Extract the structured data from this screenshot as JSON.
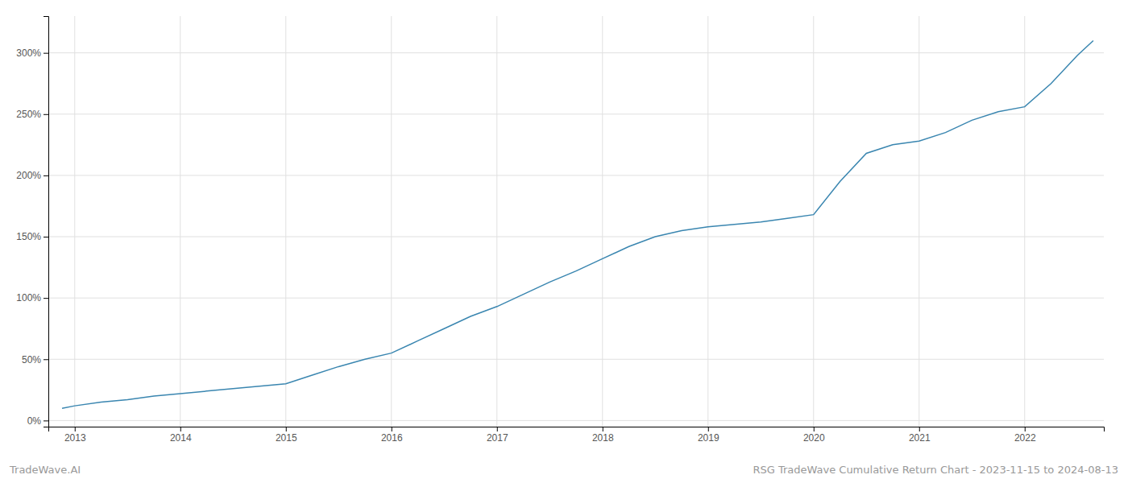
{
  "chart_data": {
    "type": "line",
    "title": "RSG TradeWave Cumulative Return Chart - 2023-11-15 to 2024-08-13",
    "annotations": [
      "TradeWave.AI"
    ],
    "x": [
      2012.88,
      2013.0,
      2013.25,
      2013.5,
      2013.75,
      2014.0,
      2014.25,
      2014.5,
      2014.75,
      2015.0,
      2015.25,
      2015.5,
      2015.75,
      2016.0,
      2016.25,
      2016.5,
      2016.75,
      2017.0,
      2017.25,
      2017.5,
      2017.75,
      2018.0,
      2018.25,
      2018.5,
      2018.75,
      2019.0,
      2019.25,
      2019.5,
      2019.75,
      2020.0,
      2020.25,
      2020.5,
      2020.75,
      2021.0,
      2021.25,
      2021.5,
      2021.75,
      2022.0,
      2022.25,
      2022.5,
      2022.65
    ],
    "values": [
      10,
      12,
      15,
      17,
      20,
      22,
      24,
      26,
      28,
      30,
      37,
      44,
      50,
      55,
      65,
      75,
      85,
      93,
      103,
      113,
      122,
      132,
      142,
      150,
      155,
      158,
      160,
      162,
      165,
      168,
      195,
      218,
      225,
      228,
      235,
      245,
      252,
      256,
      275,
      298,
      310
    ],
    "color": "#3a86b0",
    "xlim": [
      2012.75,
      2022.75
    ],
    "ylim": [
      -5,
      330
    ],
    "xticks": [
      2013,
      2014,
      2015,
      2016,
      2017,
      2018,
      2019,
      2020,
      2021,
      2022
    ],
    "yticks": [
      {
        "value": 0,
        "label": "0%"
      },
      {
        "value": 50,
        "label": "50%"
      },
      {
        "value": 100,
        "label": "100%"
      },
      {
        "value": 150,
        "label": "150%"
      },
      {
        "value": 200,
        "label": "200%"
      },
      {
        "value": 250,
        "label": "250%"
      },
      {
        "value": 300,
        "label": "300%"
      }
    ],
    "grid": true
  }
}
